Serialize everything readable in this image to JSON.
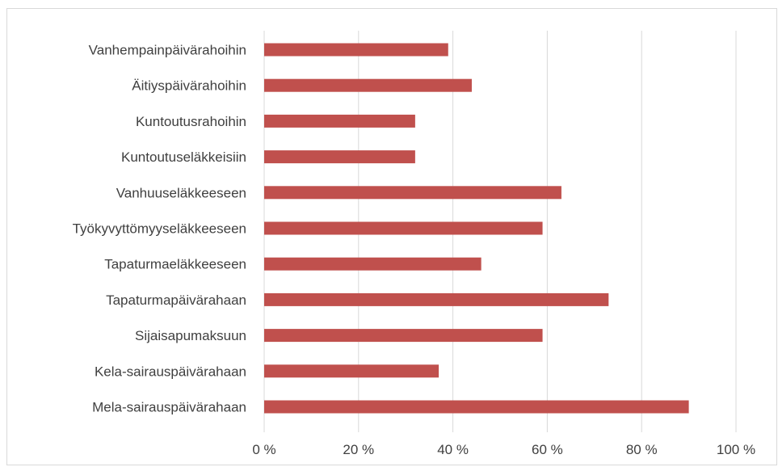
{
  "chart_data": {
    "type": "bar",
    "orientation": "horizontal",
    "categories": [
      "Vanhempainpäivärahoihin",
      "Äitiyspäivärahoihin",
      "Kuntoutusrahoihin",
      "Kuntoutuseläkkeisiin",
      "Vanhuuseläkkeeseen",
      "Työkyvyttömyyseläkkeeseen",
      "Tapaturmaeläkkeeseen",
      "Tapaturmapäivärahaan",
      "Sijaisapumaksuun",
      "Kela-sairauspäivärahaan",
      "Mela-sairauspäivärahaan"
    ],
    "values": [
      39,
      44,
      32,
      32,
      63,
      59,
      46,
      73,
      59,
      37,
      90
    ],
    "xlim": [
      0,
      100
    ],
    "ticks": [
      "0 %",
      "20 %",
      "40 %",
      "60 %",
      "80 %",
      "100 %"
    ],
    "tick_values": [
      0,
      20,
      40,
      60,
      80,
      100
    ],
    "bar_color": "#c0504d",
    "grid": true,
    "legend": "none"
  }
}
